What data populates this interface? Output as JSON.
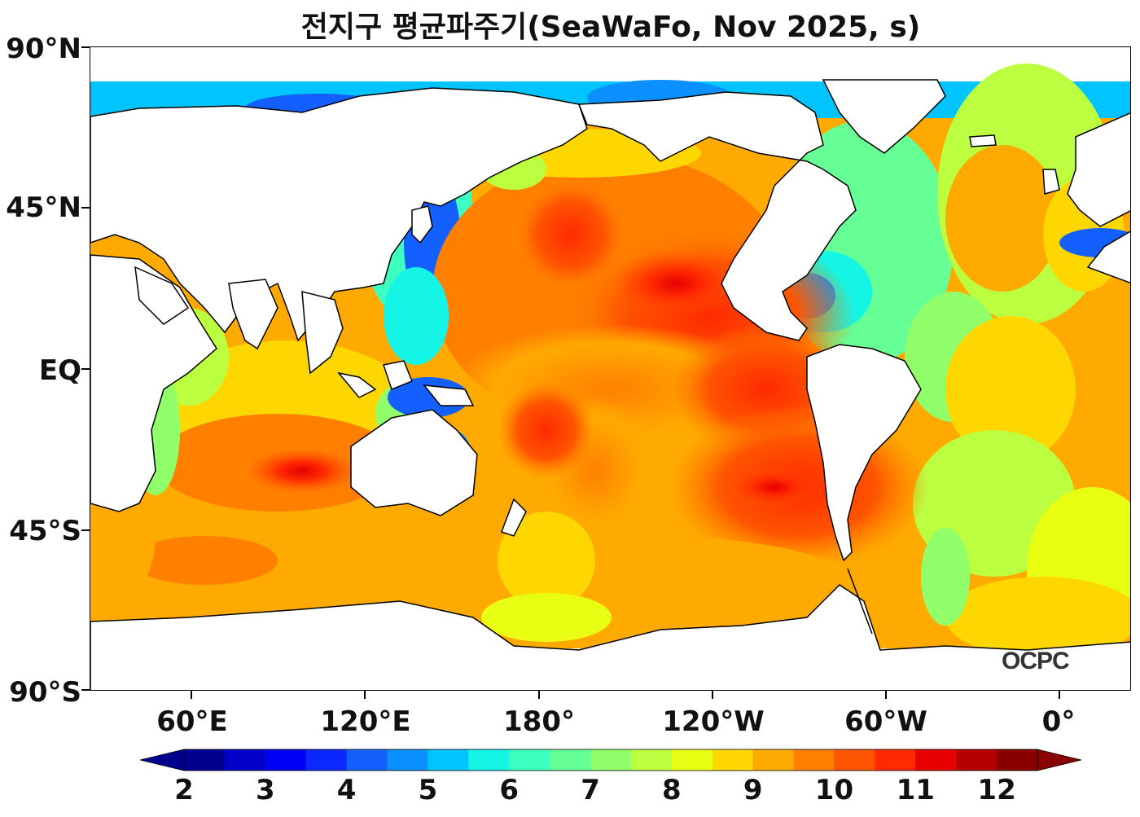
{
  "title": "전지구 평균파주기(SeaWaFo, Nov 2025, s)",
  "lat_labels": [
    "90°N",
    "45°N",
    "EQ",
    "45°S",
    "90°S"
  ],
  "lon_labels": [
    "60°E",
    "120°E",
    "180°",
    "120°W",
    "60°W",
    "0°"
  ],
  "colorbar": {
    "labels": [
      "2",
      "3",
      "4",
      "5",
      "6",
      "7",
      "8",
      "9",
      "10",
      "11",
      "12"
    ],
    "colors": [
      "#00008f",
      "#0000c8",
      "#0000f5",
      "#0a28ff",
      "#1460ff",
      "#0b90ff",
      "#00c4ff",
      "#14f5e6",
      "#3cffc0",
      "#66ff96",
      "#90ff6a",
      "#bcff40",
      "#e8ff14",
      "#ffd700",
      "#ffaa00",
      "#ff8000",
      "#ff5500",
      "#ff2a00",
      "#e60000",
      "#b40000",
      "#8a0000"
    ],
    "arrow_low_color": "#00008f",
    "arrow_high_color": "#8a0000"
  },
  "watermark": "OCPC",
  "map": {
    "land_color": "#ffffff",
    "coast_color": "#000000"
  }
}
